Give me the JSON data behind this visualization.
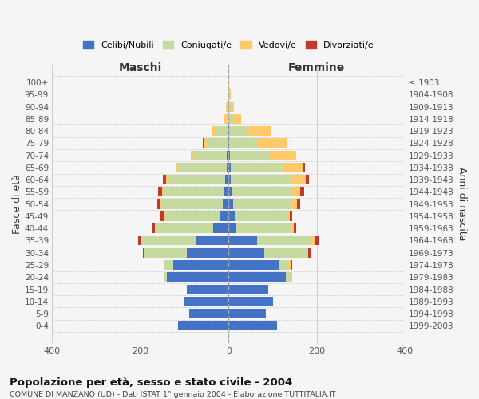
{
  "age_groups": [
    "0-4",
    "5-9",
    "10-14",
    "15-19",
    "20-24",
    "25-29",
    "30-34",
    "35-39",
    "40-44",
    "45-49",
    "50-54",
    "55-59",
    "60-64",
    "65-69",
    "70-74",
    "75-79",
    "80-84",
    "85-89",
    "90-94",
    "95-99",
    "100+"
  ],
  "birth_years": [
    "1999-2003",
    "1994-1998",
    "1989-1993",
    "1984-1988",
    "1979-1983",
    "1974-1978",
    "1969-1973",
    "1964-1968",
    "1959-1963",
    "1954-1958",
    "1949-1953",
    "1944-1948",
    "1939-1943",
    "1934-1938",
    "1929-1933",
    "1924-1928",
    "1919-1923",
    "1914-1918",
    "1909-1913",
    "1904-1908",
    "≤ 1903"
  ],
  "colors": {
    "celibi": "#4472c4",
    "coniugati": "#c5d9a0",
    "vedovi": "#ffc869",
    "divorziati": "#c0392b"
  },
  "males": {
    "celibi": [
      115,
      90,
      100,
      95,
      140,
      125,
      95,
      75,
      35,
      18,
      14,
      10,
      8,
      5,
      5,
      3,
      2,
      0,
      0,
      0,
      0
    ],
    "coniugati": [
      0,
      0,
      0,
      0,
      5,
      20,
      95,
      125,
      130,
      125,
      138,
      138,
      130,
      110,
      75,
      45,
      28,
      5,
      3,
      1,
      0
    ],
    "vedovi": [
      0,
      0,
      0,
      0,
      0,
      0,
      0,
      0,
      2,
      2,
      2,
      3,
      4,
      3,
      5,
      8,
      8,
      5,
      3,
      1,
      0
    ],
    "divorziati": [
      0,
      0,
      0,
      0,
      0,
      0,
      5,
      5,
      5,
      9,
      8,
      8,
      7,
      0,
      0,
      2,
      0,
      0,
      0,
      0,
      0
    ]
  },
  "females": {
    "celibi": [
      110,
      85,
      100,
      90,
      130,
      115,
      80,
      65,
      18,
      14,
      10,
      8,
      5,
      4,
      3,
      2,
      2,
      0,
      0,
      0,
      0
    ],
    "coniugati": [
      0,
      0,
      0,
      0,
      15,
      20,
      100,
      125,
      125,
      120,
      130,
      135,
      140,
      120,
      90,
      65,
      40,
      10,
      5,
      2,
      0
    ],
    "vedovi": [
      0,
      0,
      0,
      0,
      0,
      5,
      0,
      5,
      5,
      5,
      15,
      20,
      30,
      45,
      60,
      65,
      55,
      18,
      8,
      3,
      1
    ],
    "divorziati": [
      0,
      0,
      0,
      0,
      0,
      5,
      5,
      10,
      5,
      5,
      8,
      8,
      8,
      5,
      0,
      2,
      0,
      0,
      0,
      0,
      0
    ]
  },
  "title": "Popolazione per età, sesso e stato civile - 2004",
  "subtitle": "COMUNE DI MANZANO (UD) - Dati ISTAT 1° gennaio 2004 - Elaborazione TUTTITALIA.IT",
  "ylabel_left": "Fasce di età",
  "ylabel_right": "Anni di nascita",
  "xlabel_left": "Maschi",
  "xlabel_right": "Femmine",
  "xlim": 400,
  "background_color": "#f5f5f5",
  "plot_bg": "#f5f5f5",
  "grid_color": "#cccccc"
}
